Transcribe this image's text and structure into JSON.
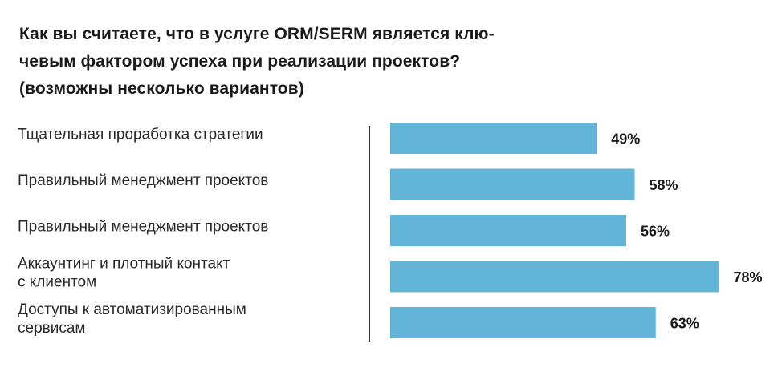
{
  "chart_data": {
    "type": "bar",
    "orientation": "horizontal",
    "title": [
      "Как вы считаете, что в услуге ORM/SERM является клю-",
      "чевым фактором успеха при реализации проектов?",
      "(возможны несколько вариантов)"
    ],
    "categories": [
      [
        "Тщательная проработка стратегии"
      ],
      [
        "Правильный менеджмент проектов"
      ],
      [
        "Правильный менеджмент проектов"
      ],
      [
        "Аккаунтинг и плотный контакт",
        "с клиентом"
      ],
      [
        "Доступы к автоматизированным",
        "сервисам"
      ]
    ],
    "values": [
      49,
      58,
      56,
      78,
      63
    ],
    "value_labels": [
      "49%",
      "58%",
      "56%",
      "78%",
      "63%"
    ],
    "unit": "%",
    "xlim": [
      0,
      82
    ],
    "bar_color": "#62b5d9",
    "axis_color": "#333333",
    "grid": false,
    "legend": false
  }
}
